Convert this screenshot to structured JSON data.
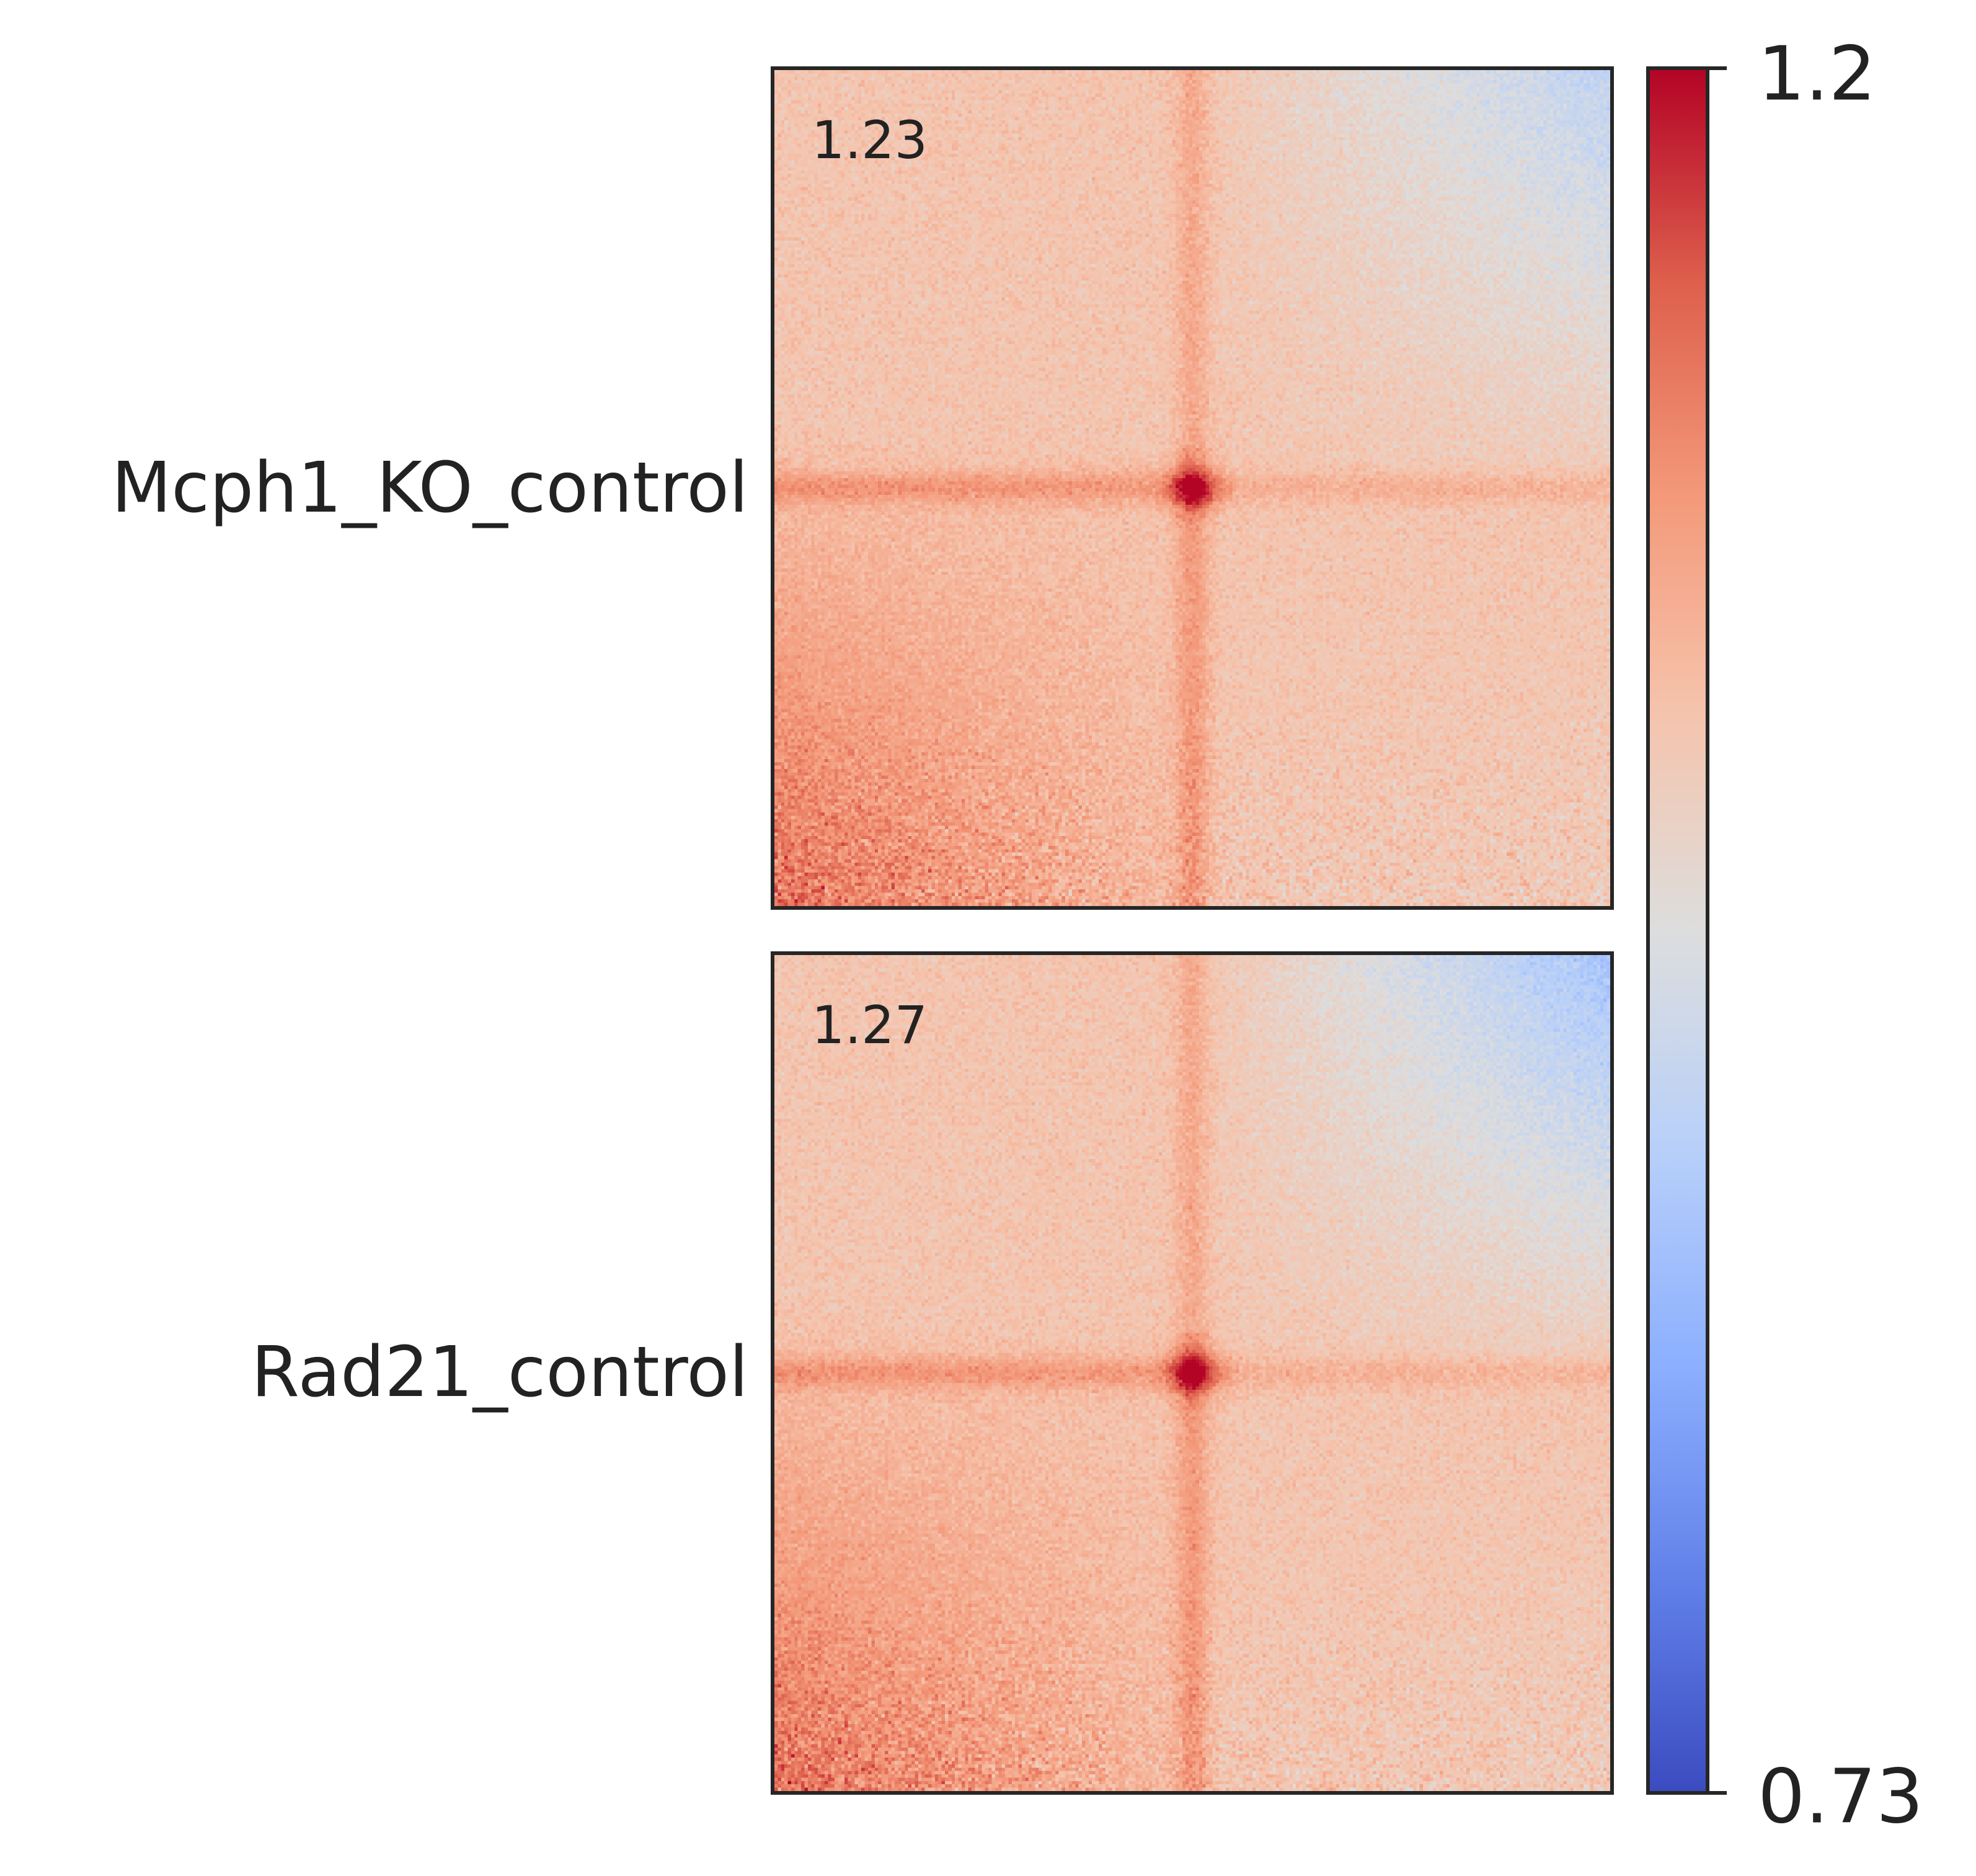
{
  "chart_data": {
    "type": "heatmap",
    "panels": [
      {
        "name": "Mcph1_KO_control",
        "corner_value": "1.23"
      },
      {
        "name": "Rad21_control",
        "corner_value": "1.27"
      }
    ],
    "colorbar": {
      "colormap": "coolwarm",
      "vmin": 0.73,
      "vmax": 1.2,
      "min_label": "0.73",
      "max_label": "1.2",
      "colors": {
        "low": "#3b4cc0",
        "mid": "#dddddd",
        "high": "#b40426"
      }
    }
  }
}
